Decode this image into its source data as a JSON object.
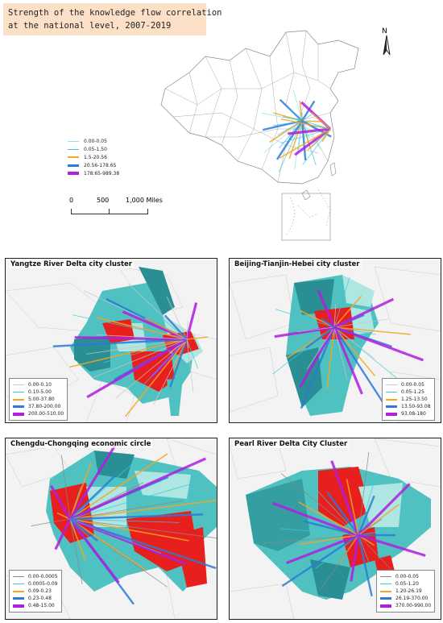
{
  "title": {
    "line1": "Strength of the knowledge flow correlation",
    "line2": "at the national level, 2007-2019"
  },
  "north_label": "N",
  "main_legend": [
    {
      "label": "0.00-0.05",
      "color": "#8ee3ef",
      "width": 1
    },
    {
      "label": "0.05-1.50",
      "color": "#3fc8e0",
      "width": 1
    },
    {
      "label": "1.5-20.56",
      "color": "#f5a623",
      "width": 2
    },
    {
      "label": "20.56-178.65",
      "color": "#2b7bd8",
      "width": 3
    },
    {
      "label": "178.65-989.38",
      "color": "#b01ee0",
      "width": 4
    }
  ],
  "scale": {
    "t0": "0",
    "t1": "500",
    "t2": "1,000 Miles"
  },
  "panels": [
    {
      "title": "Yangtze River Delta city cluster",
      "legend": [
        {
          "label": "0.00-0.10",
          "color": "#c8c8c8",
          "width": 1
        },
        {
          "label": "0.10-5.00",
          "color": "#3fc8e0",
          "width": 1
        },
        {
          "label": "5.00-37.80",
          "color": "#f5a623",
          "width": 2
        },
        {
          "label": "37.80-200.00",
          "color": "#2b7bd8",
          "width": 3
        },
        {
          "label": "200.00-510.00",
          "color": "#b01ee0",
          "width": 4
        }
      ]
    },
    {
      "title": "Beijing-Tianjin-Hebei city cluster",
      "legend": [
        {
          "label": "0.00-0.05",
          "color": "#c8c8c8",
          "width": 1
        },
        {
          "label": "0.05-1.25",
          "color": "#3fc8e0",
          "width": 1
        },
        {
          "label": "1.25-13.50",
          "color": "#f5a623",
          "width": 2
        },
        {
          "label": "13.50-93.08",
          "color": "#2b7bd8",
          "width": 3
        },
        {
          "label": "93.08-180",
          "color": "#b01ee0",
          "width": 4
        }
      ]
    },
    {
      "title": "Chengdu-Chongqing economic circle",
      "legend": [
        {
          "label": "0.00-0.0005",
          "color": "#888888",
          "width": 1
        },
        {
          "label": "0.0005-0.09",
          "color": "#3fc8e0",
          "width": 1
        },
        {
          "label": "0.09-0.23",
          "color": "#f5a623",
          "width": 2
        },
        {
          "label": "0.23-0.48",
          "color": "#2b7bd8",
          "width": 3
        },
        {
          "label": "0.48-15.00",
          "color": "#b01ee0",
          "width": 4
        }
      ]
    },
    {
      "title": "Pearl River Delta City Cluster",
      "legend": [
        {
          "label": "0.00-0.05",
          "color": "#888888",
          "width": 1
        },
        {
          "label": "0.05-1.20",
          "color": "#3fc8e0",
          "width": 1
        },
        {
          "label": "1.20-26.19",
          "color": "#f5a623",
          "width": 2
        },
        {
          "label": "26.19-370.00",
          "color": "#2b7bd8",
          "width": 3
        },
        {
          "label": "370.00-990.00",
          "color": "#b01ee0",
          "width": 4
        }
      ]
    }
  ],
  "colors": {
    "teal_dark": "#2a8f94",
    "teal_mid": "#4fc1c0",
    "teal_light": "#aee6e2",
    "red": "#e8201d",
    "map_bg": "#ececec"
  }
}
